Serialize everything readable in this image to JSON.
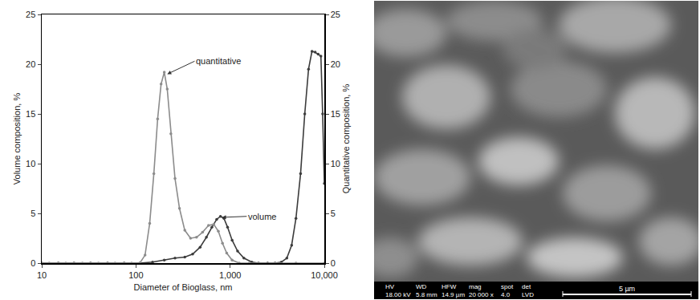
{
  "chart_data": {
    "type": "line",
    "x_label": "Diameter of Bioglass, nm",
    "y_label": "Volume composition, %",
    "y2_label": "Quantitative composition, %",
    "log": "x",
    "grid": false,
    "xlim": [
      10,
      10000
    ],
    "xticks": [
      10,
      100,
      {
        "value": 1000,
        "label": "1,000"
      },
      {
        "value": 10000,
        "label": "10,000"
      }
    ],
    "ylim": [
      0,
      25
    ],
    "yticks": [
      0,
      5,
      10,
      15,
      20,
      25
    ],
    "y2lim": [
      0,
      25
    ],
    "y2ticks": [
      0,
      5,
      10,
      15,
      20,
      25
    ],
    "series": [
      {
        "name": "quantitative",
        "axis": "y2",
        "color": "#8c8c8c",
        "marker": "circle",
        "line_style": "solid",
        "x": [
          10,
          12,
          15,
          18,
          22,
          27,
          33,
          40,
          50,
          60,
          75,
          90,
          110,
          125,
          140,
          155,
          170,
          185,
          200,
          215,
          235,
          260,
          290,
          330,
          380,
          440,
          510,
          590,
          670,
          750,
          830,
          920,
          1050,
          1250,
          1600,
          2000,
          3000,
          5000,
          10000
        ],
        "values": [
          0,
          0,
          0,
          0,
          0,
          0,
          0,
          0,
          0,
          0,
          0,
          0,
          0,
          0.8,
          4,
          9,
          14.5,
          18,
          19.2,
          17.5,
          13,
          8.5,
          5.5,
          3.3,
          2.5,
          2.6,
          3.1,
          3.8,
          3.9,
          3.2,
          2.0,
          1.0,
          0.3,
          0,
          0,
          0,
          0,
          0,
          0
        ]
      },
      {
        "name": "volume",
        "axis": "y",
        "color": "#3c3c3c",
        "marker": "circle",
        "line_style": "solid",
        "x": [
          10,
          15,
          22,
          33,
          50,
          75,
          110,
          150,
          200,
          260,
          330,
          400,
          480,
          560,
          640,
          720,
          790,
          860,
          940,
          1050,
          1200,
          1400,
          1700,
          2000,
          2500,
          3000,
          3500,
          4000,
          4500,
          5000,
          5600,
          6200,
          6800,
          7400,
          8000,
          8600,
          9200,
          9600,
          10000
        ],
        "values": [
          0,
          0,
          0,
          0,
          0,
          0,
          0,
          0.1,
          0.3,
          0.5,
          0.6,
          0.9,
          1.6,
          2.6,
          3.6,
          4.4,
          4.7,
          4.5,
          3.6,
          2.3,
          1.2,
          0.5,
          0.1,
          0,
          0,
          0,
          0.1,
          0.5,
          1.8,
          4.5,
          9,
          15,
          19.5,
          21.3,
          21.2,
          21,
          20.8,
          15,
          8
        ]
      }
    ],
    "annotations": [
      {
        "text": "quantitative",
        "x": 215,
        "y": 19,
        "text_x": 420,
        "text_y": 20.3
      },
      {
        "text": "volume",
        "x": 820,
        "y": 4.6,
        "text_x": 1500,
        "text_y": 4.7
      }
    ]
  },
  "micrograph": {
    "info_bar": {
      "labels": [
        "HV",
        "WD",
        "HFW",
        "mag",
        "spot",
        "det"
      ],
      "values": [
        "18.00 kV",
        "5.8 mm",
        "14.9 µm",
        "20 000 x",
        "4.0",
        "LVD"
      ]
    },
    "scale_bar": "5 µm"
  }
}
